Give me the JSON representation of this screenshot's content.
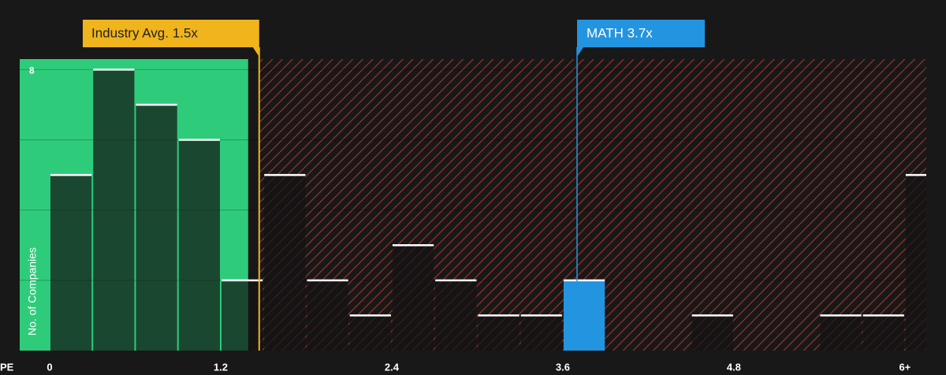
{
  "chart_data": {
    "type": "histogram",
    "x_label": "PE",
    "y_label": "No. of Companies",
    "bins": [
      0,
      0.3,
      0.6,
      0.9,
      1.2,
      1.5,
      1.8,
      2.1,
      2.4,
      2.7,
      3.0,
      3.3,
      3.6,
      3.9,
      4.2,
      4.5,
      4.8,
      5.1,
      5.4,
      5.7,
      6.0,
      6.3
    ],
    "values": [
      5,
      8,
      7,
      6,
      2,
      5,
      2,
      1,
      3,
      2,
      1,
      1,
      2,
      0,
      0,
      1,
      0,
      0,
      1,
      1,
      5
    ],
    "xlim": [
      -0.21,
      6.15
    ],
    "xticks": [
      0,
      1.2,
      2.4,
      3.6,
      4.8,
      {
        "value": 6,
        "label": "6+"
      }
    ],
    "ylim": [
      0,
      8.3
    ],
    "yticks": [
      8
    ],
    "ygrid": [
      2,
      4,
      6,
      8
    ],
    "bar_color": "#141414",
    "industry_avg": {
      "value": 1.47,
      "label": "Industry Avg. 1.5x",
      "color": "#f0b41c"
    },
    "company": {
      "value": 3.7,
      "label": "MATH 3.7x",
      "color": "#2394df"
    },
    "below_color": "#2ecc7a",
    "above_color": "#c0392b"
  }
}
